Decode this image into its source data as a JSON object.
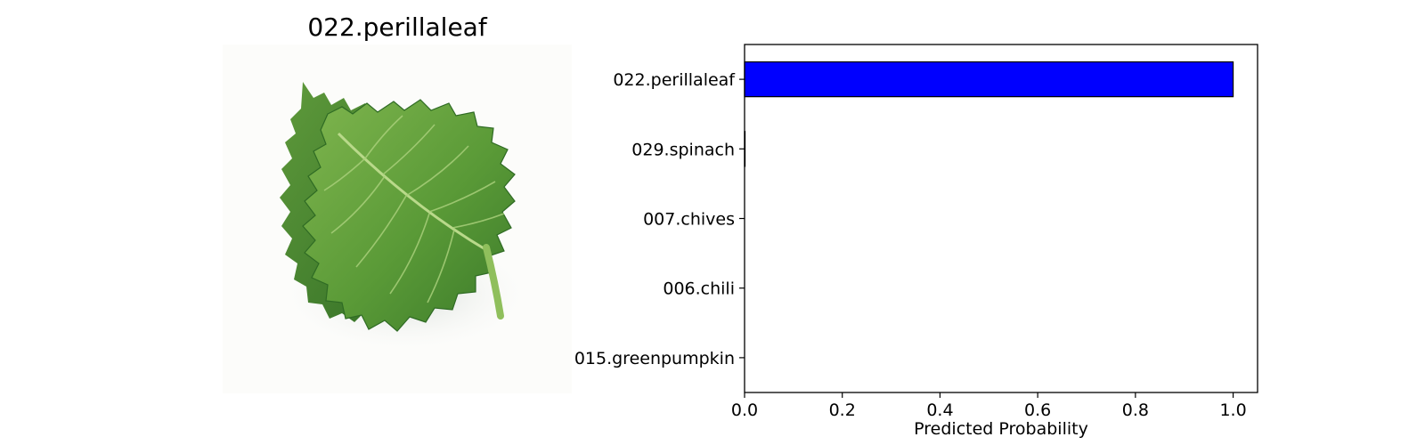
{
  "image_panel": {
    "title": "022.perillaleaf",
    "subject_icon": "perilla-leaf-photo"
  },
  "chart_data": {
    "type": "bar",
    "orientation": "horizontal",
    "categories": [
      "022.perillaleaf",
      "029.spinach",
      "007.chives",
      "006.chili",
      "015.greenpumpkin"
    ],
    "values": [
      1.0,
      0.001,
      0.0,
      0.0,
      0.0
    ],
    "xlabel": "Predicted Probability",
    "ylabel": "",
    "xlim": [
      0,
      1.05
    ],
    "xticks": [
      "0.0",
      "0.2",
      "0.4",
      "0.6",
      "0.8",
      "1.0"
    ],
    "grid": false,
    "colors": {
      "bar": "#0000ff",
      "edge": "#000000"
    }
  }
}
